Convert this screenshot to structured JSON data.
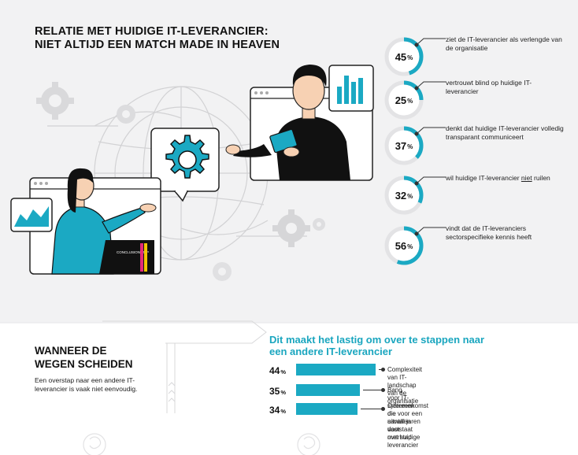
{
  "title": {
    "line1": "RELATIE MET HUIDIGE IT-LEVERANCIER:",
    "line2": "NIET ALTIJD EEN MATCH MADE IN HEAVEN"
  },
  "laptop_brand": "CONCLUSION MBP",
  "colors": {
    "accent": "#1ba9c3",
    "dark": "#111111",
    "background_top": "#f2f2f3"
  },
  "stats": [
    {
      "value": 45,
      "value_label": "45",
      "unit": "%",
      "text": "ziet de IT-leverancier als verlengde van de organisatie"
    },
    {
      "value": 25,
      "value_label": "25",
      "unit": "%",
      "text": "vertrouwt blind op huidige IT-leverancier"
    },
    {
      "value": 37,
      "value_label": "37",
      "unit": "%",
      "text": "denkt dat huidige IT-leverancier volledig transparant communiceert"
    },
    {
      "value": 32,
      "value_label": "32",
      "unit": "%",
      "text_pre": "wil huidige IT-leverancier ",
      "text_underlined": "niet",
      "text_post": " ruilen"
    },
    {
      "value": 56,
      "value_label": "56",
      "unit": "%",
      "text": "vindt dat de IT-leveranciers sectorspecifieke kennis heeft"
    }
  ],
  "wanneer": {
    "title_line1": "WANNEER DE",
    "title_line2": "WEGEN SCHEIDEN",
    "text": "Een overstap naar een andere IT-leverancier is vaak niet eenvoudig."
  },
  "obstacles": {
    "title_line1": "Dit maakt het lastig om over te stappen naar",
    "title_line2": "een andere IT-leverancier",
    "items": [
      {
        "value": 44,
        "value_label": "44",
        "unit": "%",
        "text": "Complexiteit van IT-landschap van de organisatie"
      },
      {
        "value": 35,
        "value_label": "35",
        "unit": "%",
        "text": "Bang voor IT-systemen die uitvallen door overstap"
      },
      {
        "value": 34,
        "value_label": "34",
        "unit": "%",
        "text_line1": "Overeenkomst die voor een aantal jaren vaststaat",
        "text_line2": "met huidige leverancier"
      }
    ]
  }
}
